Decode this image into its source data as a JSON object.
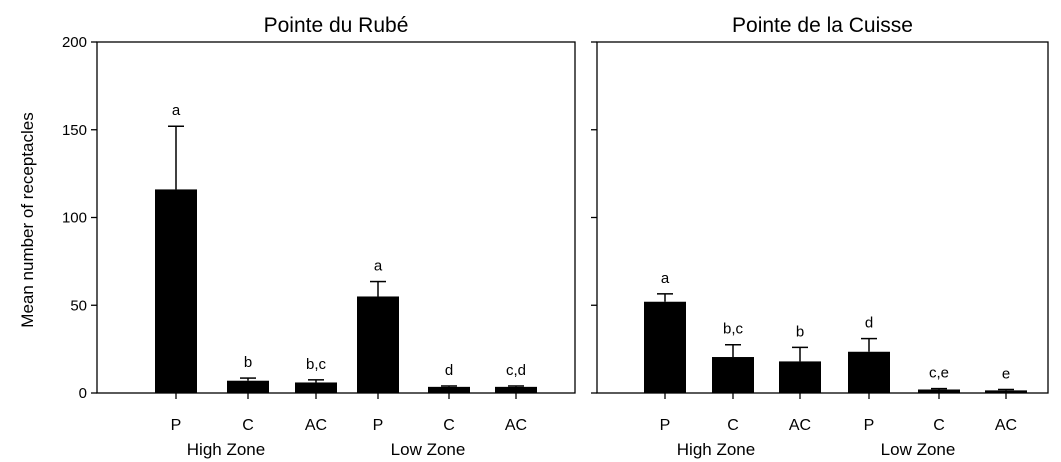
{
  "chart_data": {
    "type": "bar",
    "ylabel": "Mean number of receptacles",
    "ylim": [
      0,
      200
    ],
    "yticks": [
      0,
      50,
      100,
      150,
      200
    ],
    "categories": [
      "P",
      "C",
      "AC",
      "P",
      "C",
      "AC"
    ],
    "groups": [
      "High Zone",
      "Low Zone"
    ],
    "bar_color": "#000000",
    "panels": [
      {
        "title": "Pointe du Rubé",
        "values": [
          116,
          7,
          6,
          55,
          3.5,
          3.5
        ],
        "errors": [
          36,
          1.5,
          1.5,
          8.5,
          0.5,
          0.5
        ],
        "labels": [
          "a",
          "b",
          "b,c",
          "a",
          "d",
          "c,d"
        ]
      },
      {
        "title": "Pointe de la Cuisse",
        "values": [
          52,
          20.5,
          18,
          23.5,
          2,
          1.5
        ],
        "errors": [
          4.5,
          7,
          8,
          7.5,
          0.5,
          0.5
        ],
        "labels": [
          "a",
          "b,c",
          "b",
          "d",
          "c,e",
          "e"
        ]
      }
    ]
  }
}
